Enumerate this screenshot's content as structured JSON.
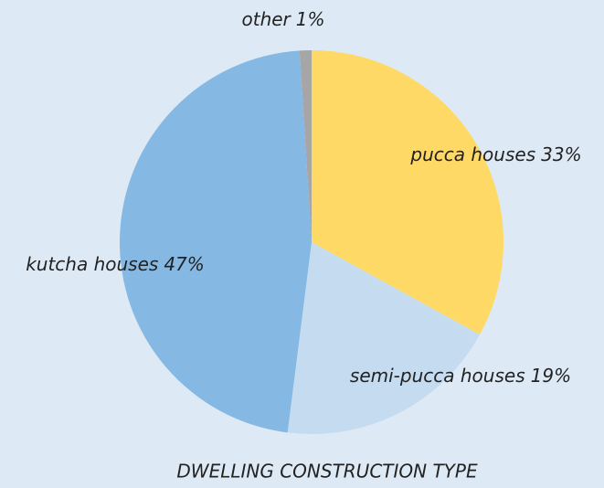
{
  "chart_data": {
    "type": "pie",
    "title": "DWELLING CONSTRUCTION TYPE",
    "categories": [
      "pucca houses",
      "semi-pucca houses",
      "kutcha houses",
      "other"
    ],
    "values": [
      33,
      19,
      47,
      1
    ],
    "value_labels": [
      "33%",
      "19%",
      "47%",
      "1%"
    ],
    "colors": [
      "#ffd966",
      "#c5dbf0",
      "#85b9e3",
      "#a6a6a6"
    ]
  }
}
